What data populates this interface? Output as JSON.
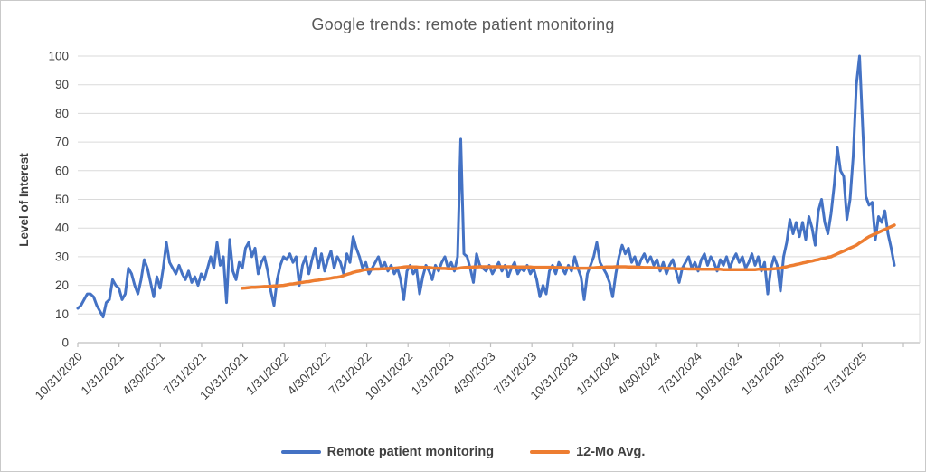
{
  "title": "Google trends: remote patient monitoring",
  "colors": {
    "blue_series": "#4472C4",
    "orange_series": "#ED7D31",
    "gridline": "#DADADA",
    "axis_line": "#BFBFBF",
    "tick_text": "#404040",
    "title_text": "#595959"
  },
  "chart_data": {
    "type": "line",
    "title": "Google trends: remote patient monitoring",
    "xlabel": "",
    "ylabel": "Level of Interest",
    "ylim": [
      0,
      100
    ],
    "y_ticks": [
      0,
      10,
      20,
      30,
      40,
      50,
      60,
      70,
      80,
      90,
      100
    ],
    "grid": "horizontal",
    "legend_position": "bottom",
    "x_unit": "weekly samples starting 10/31/2020",
    "x_tick_labels": [
      "10/31/2020",
      "1/31/2021",
      "4/30/2021",
      "7/31/2021",
      "10/31/2021",
      "1/31/2022",
      "4/30/2022",
      "7/31/2022",
      "10/31/2022",
      "1/31/2023",
      "4/30/2023",
      "7/31/2023",
      "10/31/2023",
      "1/31/2024",
      "4/30/2024",
      "7/31/2024",
      "10/31/2024",
      "1/31/2025",
      "4/30/2025",
      "7/31/2025"
    ],
    "x_ticks_every_weeks": 13.043,
    "series": [
      {
        "name": "Remote patient monitoring",
        "color": "#4472C4",
        "start_week": 0,
        "values": [
          12,
          13,
          15,
          17,
          17,
          16,
          13,
          11,
          9,
          14,
          15,
          22,
          20,
          19,
          15,
          17,
          26,
          24,
          20,
          17,
          22,
          29,
          26,
          21,
          16,
          23,
          19,
          26,
          35,
          28,
          26,
          24,
          27,
          24,
          22,
          25,
          21,
          23,
          20,
          24,
          22,
          26,
          30,
          26,
          35,
          27,
          30,
          14,
          36,
          25,
          22,
          28,
          26,
          33,
          35,
          30,
          33,
          24,
          28,
          30,
          25,
          18,
          13,
          22,
          27,
          30,
          29,
          31,
          28,
          30,
          20,
          27,
          30,
          24,
          29,
          33,
          26,
          31,
          25,
          29,
          32,
          26,
          30,
          28,
          24,
          31,
          28,
          37,
          33,
          30,
          26,
          28,
          24,
          26,
          28,
          30,
          26,
          28,
          25,
          27,
          24,
          26,
          22,
          15,
          25,
          27,
          24,
          26,
          17,
          23,
          27,
          25,
          22,
          27,
          25,
          28,
          30,
          26,
          28,
          25,
          30,
          71,
          31,
          30,
          26,
          21,
          31,
          27,
          26,
          25,
          27,
          24,
          26,
          28,
          25,
          27,
          23,
          26,
          28,
          24,
          26,
          25,
          27,
          24,
          26,
          22,
          16,
          20,
          17,
          25,
          27,
          24,
          28,
          26,
          24,
          27,
          25,
          30,
          26,
          23,
          15,
          24,
          27,
          30,
          35,
          28,
          26,
          24,
          21,
          16,
          24,
          30,
          34,
          31,
          33,
          28,
          30,
          26,
          29,
          31,
          28,
          30,
          27,
          29,
          25,
          28,
          24,
          27,
          29,
          25,
          21,
          26,
          28,
          30,
          26,
          28,
          25,
          29,
          31,
          27,
          30,
          28,
          25,
          29,
          27,
          30,
          26,
          29,
          31,
          28,
          30,
          26,
          28,
          31,
          27,
          30,
          25,
          28,
          17,
          26,
          30,
          27,
          18,
          30,
          35,
          43,
          38,
          42,
          37,
          42,
          36,
          44,
          40,
          34,
          46,
          50,
          42,
          38,
          45,
          55,
          68,
          60,
          58,
          43,
          50,
          65,
          90,
          100,
          75,
          51,
          48,
          49,
          36,
          44,
          42,
          46,
          38,
          33,
          27
        ]
      },
      {
        "name": "12-Mo Avg.",
        "color": "#ED7D31",
        "start_week": 52,
        "values": [
          19.0,
          19.1,
          19.2,
          19.3,
          19.3,
          19.4,
          19.5,
          19.6,
          19.6,
          19.7,
          19.8,
          19.8,
          19.9,
          20.0,
          20.2,
          20.4,
          20.5,
          20.7,
          20.9,
          21.0,
          21.2,
          21.3,
          21.5,
          21.7,
          21.8,
          22.0,
          22.2,
          22.3,
          22.5,
          22.7,
          22.8,
          23.0,
          23.4,
          23.8,
          24.1,
          24.5,
          24.8,
          25.0,
          25.3,
          25.5,
          25.6,
          25.6,
          25.7,
          25.7,
          25.8,
          25.8,
          25.9,
          25.9,
          26.0,
          26.1,
          26.2,
          26.4,
          26.5,
          26.5,
          26.4,
          26.4,
          26.3,
          26.3,
          26.2,
          26.2,
          26.1,
          26.0,
          26.0,
          25.9,
          25.9,
          25.8,
          25.8,
          25.8,
          25.9,
          26.1,
          26.2,
          26.3,
          26.3,
          26.4,
          26.4,
          26.5,
          26.5,
          26.5,
          26.5,
          26.5,
          26.5,
          26.5,
          26.5,
          26.5,
          26.5,
          26.5,
          26.4,
          26.4,
          26.4,
          26.4,
          26.4,
          26.4,
          26.3,
          26.3,
          26.3,
          26.3,
          26.3,
          26.3,
          26.3,
          26.2,
          26.2,
          26.2,
          26.1,
          26.1,
          26.1,
          26.0,
          26.0,
          26.0,
          26.0,
          26.0,
          26.1,
          26.1,
          26.2,
          26.3,
          26.3,
          26.4,
          26.4,
          26.4,
          26.5,
          26.5,
          26.5,
          26.5,
          26.4,
          26.4,
          26.4,
          26.3,
          26.3,
          26.2,
          26.2,
          26.2,
          26.1,
          26.1,
          26.0,
          26.0,
          26.0,
          25.9,
          25.9,
          25.8,
          25.8,
          25.8,
          25.8,
          25.7,
          25.7,
          25.7,
          25.7,
          25.6,
          25.6,
          25.6,
          25.6,
          25.6,
          25.6,
          25.6,
          25.5,
          25.5,
          25.5,
          25.5,
          25.5,
          25.5,
          25.5,
          25.5,
          25.5,
          25.5,
          25.5,
          25.6,
          25.6,
          25.6,
          25.6,
          25.7,
          25.8,
          25.9,
          26.0,
          26.3,
          26.5,
          26.8,
          27.0,
          27.3,
          27.5,
          27.8,
          28.0,
          28.3,
          28.5,
          28.8,
          29.0,
          29.3,
          29.5,
          29.8,
          30.0,
          30.5,
          31.0,
          31.5,
          32.0,
          32.5,
          33.0,
          33.5,
          34.0,
          34.8,
          35.5,
          36.3,
          37.0,
          37.5,
          38.0,
          38.5,
          39.0,
          39.5,
          40.0,
          40.5,
          41.0
        ]
      }
    ]
  },
  "legend": {
    "items": [
      {
        "label": "Remote patient monitoring",
        "color": "#4472C4"
      },
      {
        "label": "12-Mo Avg.",
        "color": "#ED7D31"
      }
    ]
  }
}
